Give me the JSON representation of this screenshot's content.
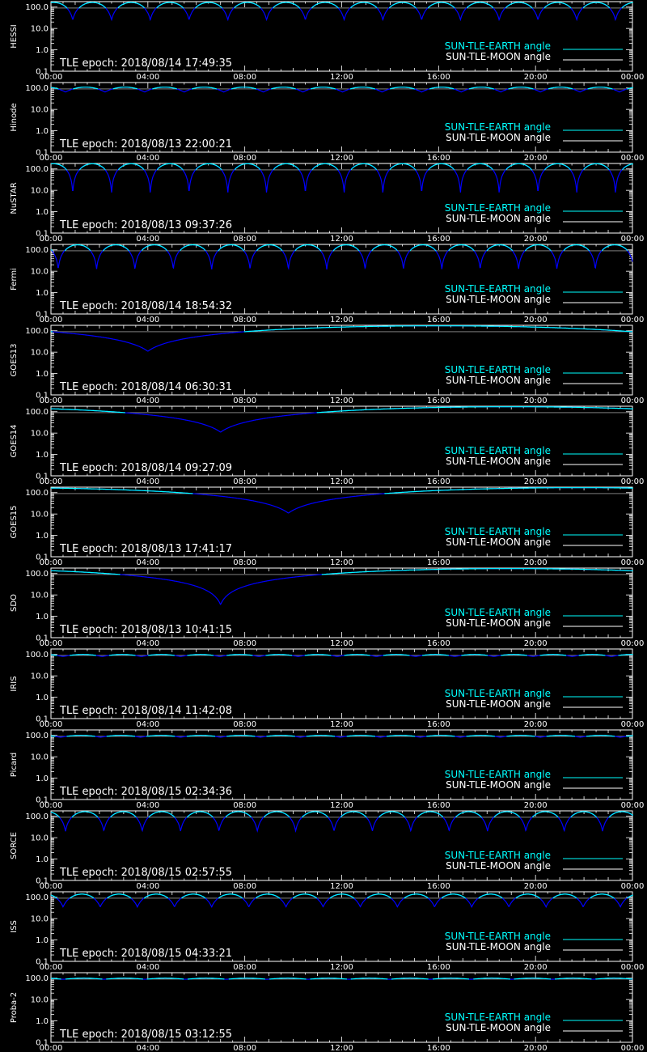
{
  "colors": {
    "background": "#000000",
    "axis": "#ffffff",
    "earth_line": "#00ffff",
    "moon_line": "#ffffff",
    "curve": "#0000ff",
    "reference": "#cccccc"
  },
  "legend": {
    "earth_label": "SUN-TLE-EARTH angle",
    "moon_label": "SUN-TLE-MOON angle"
  },
  "chart_data": [
    {
      "type": "line",
      "ylabel": "HESSI",
      "epoch": "TLE epoch: 2018/08/14 17:49:35",
      "x_ticks": [
        "00:00",
        "04:00",
        "08:00",
        "12:00",
        "16:00",
        "20:00",
        "00:00"
      ],
      "y_ticks": [
        "100.0",
        "10.0",
        "1.0",
        "0.1"
      ],
      "ylim": [
        0.1,
        180
      ],
      "yscale": "log",
      "xlim_hours": [
        0,
        24
      ],
      "orbit_minutes": 96,
      "max_angle": 165,
      "min_angle": 25,
      "phase_hours": 0.9
    },
    {
      "type": "line",
      "ylabel": "Hinode",
      "epoch": "TLE epoch: 2018/08/13 22:00:21",
      "x_ticks": [
        "00:00",
        "04:00",
        "08:00",
        "12:00",
        "16:00",
        "20:00",
        "00:00"
      ],
      "y_ticks": [
        "100.0",
        "10.0",
        "1.0",
        "0.1"
      ],
      "ylim": [
        0.1,
        180
      ],
      "yscale": "log",
      "xlim_hours": [
        0,
        24
      ],
      "orbit_minutes": 98,
      "max_angle": 110,
      "min_angle": 65,
      "phase_hours": 0.6
    },
    {
      "type": "line",
      "ylabel": "NuSTAR",
      "epoch": "TLE epoch: 2018/08/13 09:37:26",
      "x_ticks": [
        "00:00",
        "04:00",
        "08:00",
        "12:00",
        "16:00",
        "20:00",
        "00:00"
      ],
      "y_ticks": [
        "100.0",
        "10.0",
        "1.0",
        "0.1"
      ],
      "ylim": [
        0.1,
        180
      ],
      "yscale": "log",
      "xlim_hours": [
        0,
        24
      ],
      "orbit_minutes": 96,
      "max_angle": 175,
      "min_angle": 7,
      "phase_hours": 0.9
    },
    {
      "type": "line",
      "ylabel": "Fermi",
      "epoch": "TLE epoch: 2018/08/14 18:54:32",
      "x_ticks": [
        "00:00",
        "04:00",
        "08:00",
        "12:00",
        "16:00",
        "20:00",
        "00:00"
      ],
      "y_ticks": [
        "100.0",
        "10.0",
        "1.0",
        "0.1"
      ],
      "ylim": [
        0.1,
        180
      ],
      "yscale": "log",
      "xlim_hours": [
        0,
        24
      ],
      "orbit_minutes": 95,
      "max_angle": 172,
      "min_angle": 12,
      "phase_hours": 0.3
    },
    {
      "type": "line",
      "ylabel": "GOES13",
      "epoch": "TLE epoch: 2018/08/14 06:30:31",
      "x_ticks": [
        "00:00",
        "04:00",
        "08:00",
        "12:00",
        "16:00",
        "20:00",
        "00:00"
      ],
      "y_ticks": [
        "100.0",
        "10.0",
        "1.0",
        "0.1"
      ],
      "ylim": [
        0.1,
        180
      ],
      "yscale": "log",
      "xlim_hours": [
        0,
        24
      ],
      "orbit_minutes": 1436,
      "max_angle": 170,
      "min_angle": 11,
      "phase_hours": 4.0
    },
    {
      "type": "line",
      "ylabel": "GOES14",
      "epoch": "TLE epoch: 2018/08/14 09:27:09",
      "x_ticks": [
        "00:00",
        "04:00",
        "08:00",
        "12:00",
        "16:00",
        "20:00",
        "00:00"
      ],
      "y_ticks": [
        "100.0",
        "10.0",
        "1.0",
        "0.1"
      ],
      "ylim": [
        0.1,
        180
      ],
      "yscale": "log",
      "xlim_hours": [
        0,
        24
      ],
      "orbit_minutes": 1436,
      "max_angle": 170,
      "min_angle": 11,
      "phase_hours": 7.0
    },
    {
      "type": "line",
      "ylabel": "GOES15",
      "epoch": "TLE epoch: 2018/08/13 17:41:17",
      "x_ticks": [
        "00:00",
        "04:00",
        "08:00",
        "12:00",
        "16:00",
        "20:00",
        "00:00"
      ],
      "y_ticks": [
        "100.0",
        "10.0",
        "1.0",
        "0.1"
      ],
      "ylim": [
        0.1,
        180
      ],
      "yscale": "log",
      "xlim_hours": [
        0,
        24
      ],
      "orbit_minutes": 1436,
      "max_angle": 170,
      "min_angle": 11,
      "phase_hours": 9.8
    },
    {
      "type": "line",
      "ylabel": "SDO",
      "epoch": "TLE epoch: 2018/08/13 10:41:15",
      "x_ticks": [
        "00:00",
        "04:00",
        "08:00",
        "12:00",
        "16:00",
        "20:00",
        "00:00"
      ],
      "y_ticks": [
        "100.0",
        "10.0",
        "1.0",
        "0.1"
      ],
      "ylim": [
        0.1,
        180
      ],
      "yscale": "log",
      "xlim_hours": [
        0,
        24
      ],
      "orbit_minutes": 1436,
      "max_angle": 170,
      "min_angle": 3.5,
      "phase_hours": 7.0
    },
    {
      "type": "line",
      "ylabel": "IRIS",
      "epoch": "TLE epoch: 2018/08/14 11:42:08",
      "x_ticks": [
        "00:00",
        "04:00",
        "08:00",
        "12:00",
        "16:00",
        "20:00",
        "00:00"
      ],
      "y_ticks": [
        "100.0",
        "10.0",
        "1.0",
        "0.1"
      ],
      "ylim": [
        0.1,
        180
      ],
      "yscale": "log",
      "xlim_hours": [
        0,
        24
      ],
      "orbit_minutes": 97,
      "max_angle": 100,
      "min_angle": 80,
      "phase_hours": 0.5
    },
    {
      "type": "line",
      "ylabel": "Picard",
      "epoch": "TLE epoch: 2018/08/15 02:34:36",
      "x_ticks": [
        "00:00",
        "04:00",
        "08:00",
        "12:00",
        "16:00",
        "20:00",
        "00:00"
      ],
      "y_ticks": [
        "100.0",
        "10.0",
        "1.0",
        "0.1"
      ],
      "ylim": [
        0.1,
        180
      ],
      "yscale": "log",
      "xlim_hours": [
        0,
        24
      ],
      "orbit_minutes": 99,
      "max_angle": 100,
      "min_angle": 82,
      "phase_hours": 0.4
    },
    {
      "type": "line",
      "ylabel": "SORCE",
      "epoch": "TLE epoch: 2018/08/15 02:57:55",
      "x_ticks": [
        "00:00",
        "04:00",
        "08:00",
        "12:00",
        "16:00",
        "20:00",
        "00:00"
      ],
      "y_ticks": [
        "100.0",
        "10.0",
        "1.0",
        "0.1"
      ],
      "ylim": [
        0.1,
        180
      ],
      "yscale": "log",
      "xlim_hours": [
        0,
        24
      ],
      "orbit_minutes": 95,
      "max_angle": 165,
      "min_angle": 20,
      "phase_hours": 0.6
    },
    {
      "type": "line",
      "ylabel": "ISS",
      "epoch": "TLE epoch: 2018/08/15 04:33:21",
      "x_ticks": [
        "00:00",
        "04:00",
        "08:00",
        "12:00",
        "16:00",
        "20:00",
        "00:00"
      ],
      "y_ticks": [
        "100.0",
        "10.0",
        "1.0",
        "0.1"
      ],
      "ylim": [
        0.1,
        180
      ],
      "yscale": "log",
      "xlim_hours": [
        0,
        24
      ],
      "orbit_minutes": 92,
      "max_angle": 140,
      "min_angle": 35,
      "phase_hours": 0.5
    },
    {
      "type": "line",
      "ylabel": "Proba-2",
      "epoch": "TLE epoch: 2018/08/15 03:12:55",
      "x_ticks": [
        "00:00",
        "04:00",
        "08:00",
        "12:00",
        "16:00",
        "20:00",
        "00:00"
      ],
      "y_ticks": [
        "100.0",
        "10.0",
        "1.0",
        "0.1"
      ],
      "ylim": [
        0.1,
        180
      ],
      "yscale": "log",
      "xlim_hours": [
        0,
        24
      ],
      "orbit_minutes": 101,
      "max_angle": 100,
      "min_angle": 88,
      "phase_hours": 0.5
    }
  ]
}
